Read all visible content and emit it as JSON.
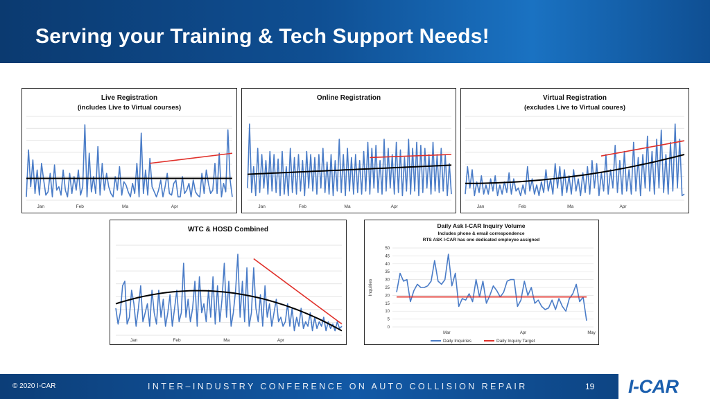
{
  "slide": {
    "title": "Serving your Training & Tech Support Needs!",
    "copyright": "© 2020 I-CAR",
    "conference": "INTER–INDUSTRY CONFERENCE ON AUTO COLLISION REPAIR",
    "page_number": "19",
    "logo": "I-CAR"
  },
  "colors": {
    "series": "#4a7cc7",
    "trend": "#000000",
    "recent_trend": "#e0302a",
    "header": "#0f4f93"
  },
  "chart_data": [
    {
      "type": "line",
      "title": "Live Registration",
      "subtitle": "(includes Live to Virtual courses)",
      "x_labels": [
        "Jan",
        "Feb",
        "Ma",
        "Apr"
      ],
      "grid": true,
      "series": [
        {
          "values": [
            2,
            30,
            8,
            24,
            4,
            18,
            3,
            22,
            12,
            3,
            5,
            16,
            2,
            21,
            6,
            8,
            3,
            18,
            6,
            2,
            16,
            4,
            14,
            6,
            18,
            3,
            8,
            45,
            2,
            28,
            5,
            14,
            4,
            32,
            3,
            22,
            6,
            16,
            8,
            4,
            2,
            14,
            6,
            20,
            3,
            11,
            9,
            5,
            2,
            10,
            4,
            22,
            2,
            40,
            4,
            18,
            3,
            25,
            8,
            5,
            2,
            6,
            12,
            2,
            8,
            16,
            4,
            3,
            10,
            12,
            2,
            2,
            14,
            4,
            6,
            10,
            2,
            12,
            5,
            3,
            2,
            16,
            4,
            18,
            10,
            4,
            6,
            22,
            4,
            28,
            2,
            10,
            5,
            42,
            12,
            2
          ]
        }
      ],
      "trend": {
        "type": "quadratic",
        "color": "black",
        "y_start": 13,
        "y_end": 13
      },
      "recent_trend": {
        "color": "red",
        "y_start": 22,
        "y_end": 28
      }
    },
    {
      "type": "line",
      "title": "Online Registration",
      "x_labels": [
        "Jan",
        "Feb",
        "Ma",
        "Apr"
      ],
      "grid": true,
      "series": [
        {
          "values": [
            8,
            50,
            5,
            22,
            3,
            34,
            5,
            30,
            8,
            26,
            4,
            32,
            6,
            30,
            5,
            27,
            3,
            32,
            4,
            22,
            3,
            34,
            5,
            28,
            4,
            30,
            6,
            26,
            3,
            32,
            8,
            30,
            6,
            28,
            4,
            30,
            8,
            34,
            5,
            25,
            4,
            30,
            3,
            26,
            6,
            40,
            5,
            30,
            3,
            34,
            6,
            28,
            4,
            30,
            5,
            26,
            4,
            32,
            6,
            38,
            4,
            34,
            8,
            36,
            5,
            26,
            4,
            40,
            6,
            34,
            8,
            30,
            4,
            38,
            5,
            33,
            3,
            28,
            6,
            40,
            4,
            34,
            6,
            38,
            3,
            36,
            5,
            34,
            8,
            30,
            4,
            38,
            6,
            30,
            5,
            34,
            6,
            30,
            3,
            24,
            4
          ]
        }
      ],
      "trend": {
        "type": "quadratic",
        "color": "black",
        "y_start": 17,
        "y_end": 23
      },
      "recent_trend": {
        "color": "red",
        "y_start": 28,
        "y_end": 30
      }
    },
    {
      "type": "line",
      "title": "Virtual Registration",
      "subtitle": "(excludes Live to Virtual coures)",
      "x_labels": [
        "Jan",
        "Feb",
        "Ma",
        "Apr"
      ],
      "grid": true,
      "series": [
        {
          "values": [
            4,
            22,
            8,
            20,
            3,
            12,
            5,
            16,
            4,
            10,
            4,
            14,
            6,
            16,
            3,
            10,
            4,
            12,
            5,
            18,
            4,
            14,
            6,
            8,
            3,
            10,
            4,
            22,
            6,
            14,
            4,
            10,
            3,
            12,
            5,
            20,
            6,
            14,
            4,
            24,
            8,
            22,
            3,
            20,
            5,
            16,
            4,
            20,
            6,
            14,
            3,
            18,
            5,
            22,
            4,
            26,
            8,
            24,
            3,
            18,
            6,
            30,
            4,
            20,
            8,
            36,
            5,
            26,
            4,
            32,
            6,
            20,
            4,
            38,
            6,
            28,
            3,
            30,
            8,
            42,
            6,
            32,
            4,
            40,
            8,
            46,
            5,
            30,
            4,
            38,
            6,
            50,
            8,
            40,
            3,
            4
          ]
        }
      ],
      "trend": {
        "type": "quadratic",
        "color": "black",
        "y_start": 11,
        "y_end": 30
      },
      "recent_trend": {
        "color": "red",
        "y_start": 29,
        "y_end": 39
      }
    },
    {
      "type": "line",
      "title": "WTC & HOSD Combined",
      "x_labels": [
        "Jan",
        "Feb",
        "Ma",
        "Apr"
      ],
      "grid": true,
      "series": [
        {
          "values": [
            12,
            5,
            10,
            22,
            24,
            5,
            8,
            20,
            14,
            4,
            12,
            22,
            6,
            10,
            14,
            4,
            20,
            10,
            5,
            20,
            8,
            16,
            4,
            10,
            18,
            4,
            12,
            20,
            6,
            10,
            32,
            8,
            16,
            6,
            12,
            24,
            4,
            26,
            10,
            14,
            6,
            20,
            8,
            26,
            5,
            22,
            6,
            16,
            32,
            8,
            24,
            4,
            10,
            20,
            36,
            8,
            24,
            6,
            30,
            4,
            10,
            30,
            12,
            6,
            18,
            4,
            22,
            8,
            14,
            4,
            10,
            16,
            6,
            8,
            4,
            6,
            14,
            4,
            12,
            2,
            8,
            4,
            12,
            3,
            6,
            4,
            10,
            2,
            8,
            3,
            6,
            4,
            8,
            2,
            6,
            3,
            5,
            2,
            6,
            3,
            4
          ]
        }
      ],
      "trend": {
        "type": "quadratic",
        "color": "black",
        "y_start": 14,
        "y_mid": 19,
        "y_end": 2
      },
      "recent_trend": {
        "color": "red",
        "y_start": 34,
        "y_end": 5
      }
    },
    {
      "type": "line",
      "title": "Daily Ask I-CAR Inquiry Volume",
      "subtitle": "Includes phone & email correspondence",
      "subtitle2": "RTS ASK I-CAR has one dedicated employee assigned",
      "ylabel": "Inquiries",
      "ylim": [
        0,
        50
      ],
      "y_ticks": [
        0,
        5,
        10,
        15,
        20,
        25,
        30,
        35,
        40,
        45,
        50
      ],
      "x_labels": [
        "Mar",
        "Apr",
        "May"
      ],
      "grid": true,
      "legend": "bottom",
      "series": [
        {
          "name": "Daily Inquiries",
          "values": [
            22,
            34,
            29,
            30,
            16,
            23,
            27,
            25,
            25,
            26,
            29,
            42,
            29,
            27,
            30,
            46,
            26,
            34,
            13,
            18,
            17,
            21,
            16,
            30,
            19,
            29,
            15,
            20,
            26,
            23,
            19,
            22,
            29,
            30,
            30,
            13,
            17,
            29,
            20,
            25,
            15,
            17,
            13,
            11,
            12,
            17,
            11,
            18,
            13,
            10,
            18,
            21,
            27,
            16,
            19,
            4
          ]
        },
        {
          "name": "Daily Inquiry Target",
          "values": [
            19,
            19
          ]
        }
      ]
    }
  ]
}
